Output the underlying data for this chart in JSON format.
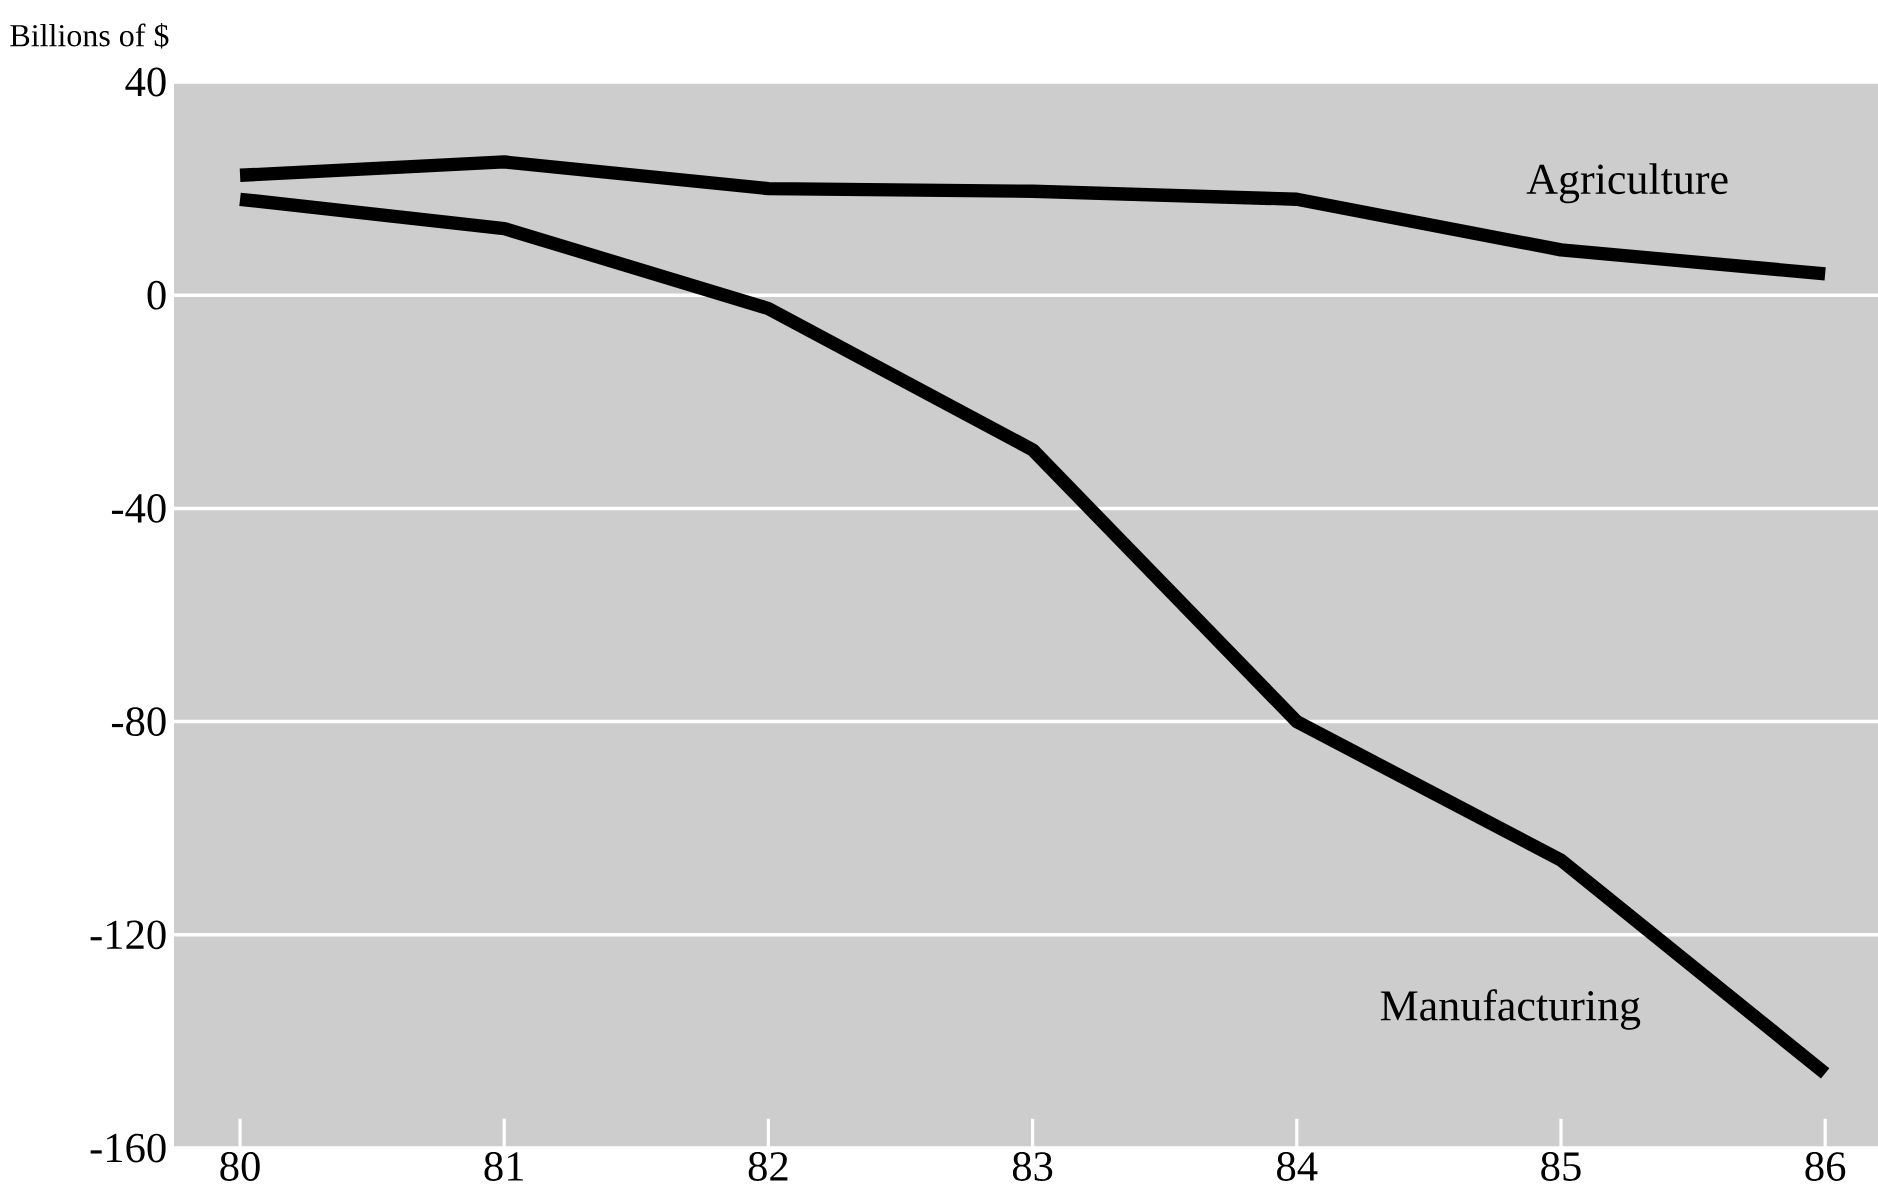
{
  "chart_data": {
    "type": "line",
    "ylabel": "Billions of $",
    "x": [
      80,
      81,
      82,
      83,
      84,
      85,
      86
    ],
    "series": [
      {
        "name": "Agriculture",
        "color": "#000000",
        "values": [
          22.5,
          25,
          20,
          19.5,
          18,
          8.5,
          4
        ]
      },
      {
        "name": "Manufacturing",
        "color": "#000000",
        "values": [
          18,
          12.5,
          -2.5,
          -29,
          -80,
          -106,
          -146
        ]
      }
    ],
    "xlim": [
      79.75,
      86.2
    ],
    "ylim": [
      -160,
      40
    ],
    "xticks": [
      80,
      81,
      82,
      83,
      84,
      85,
      86
    ],
    "yticks": [
      -160,
      -120,
      -80,
      -40,
      0,
      40
    ],
    "grid": "y"
  }
}
